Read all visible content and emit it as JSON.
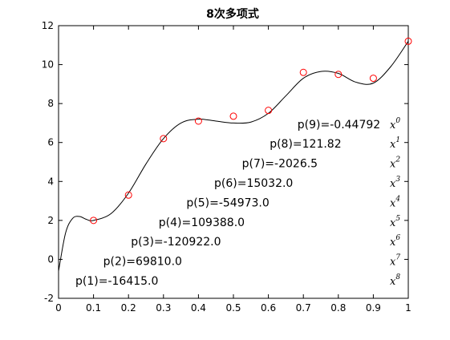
{
  "chart_data": {
    "type": "line",
    "title": "8次多项式",
    "xlim": [
      0,
      1
    ],
    "ylim": [
      -2,
      12
    ],
    "x_ticks": [
      "0",
      "0.1",
      "0.2",
      "0.3",
      "0.4",
      "0.5",
      "0.6",
      "0.7",
      "0.8",
      "0.9",
      "1"
    ],
    "y_ticks": [
      "-2",
      "0",
      "2",
      "4",
      "6",
      "8",
      "10",
      "12"
    ],
    "grid": false,
    "points": {
      "x": [
        0.1,
        0.2,
        0.3,
        0.4,
        0.5,
        0.6,
        0.7,
        0.8,
        0.9,
        1.0
      ],
      "y": [
        2.0,
        3.3,
        6.2,
        7.1,
        7.35,
        7.65,
        9.6,
        9.5,
        9.3,
        11.2
      ],
      "marker": "circle",
      "color": "#ff0000"
    },
    "curve": {
      "x": [
        0.0,
        0.02,
        0.04,
        0.06,
        0.08,
        0.1,
        0.15,
        0.2,
        0.25,
        0.3,
        0.35,
        0.4,
        0.45,
        0.5,
        0.55,
        0.6,
        0.65,
        0.7,
        0.75,
        0.8,
        0.85,
        0.9,
        0.95,
        1.0
      ],
      "y": [
        -0.6,
        1.35,
        2.1,
        2.2,
        2.05,
        2.0,
        2.35,
        3.4,
        4.9,
        6.2,
        7.0,
        7.2,
        7.1,
        7.0,
        7.05,
        7.5,
        8.4,
        9.3,
        9.65,
        9.55,
        9.1,
        9.05,
        9.9,
        11.2
      ],
      "color": "#000000"
    },
    "coefficients": [
      "p(1)=-16415.0",
      "p(2)=69810.0",
      "p(3)=-120922.0",
      "p(4)=109388.0",
      "p(5)=-54973.0",
      "p(6)=15032.0",
      "p(7)=-2026.5",
      "p(8)=121.82",
      "p(9)=-0.44792"
    ],
    "powers": [
      {
        "base": "x",
        "exp": "8"
      },
      {
        "base": "x",
        "exp": "7"
      },
      {
        "base": "x",
        "exp": "6"
      },
      {
        "base": "x",
        "exp": "5"
      },
      {
        "base": "x",
        "exp": "4"
      },
      {
        "base": "x",
        "exp": "3"
      },
      {
        "base": "x",
        "exp": "2"
      },
      {
        "base": "x",
        "exp": "1"
      },
      {
        "base": "x",
        "exp": "0"
      }
    ]
  }
}
